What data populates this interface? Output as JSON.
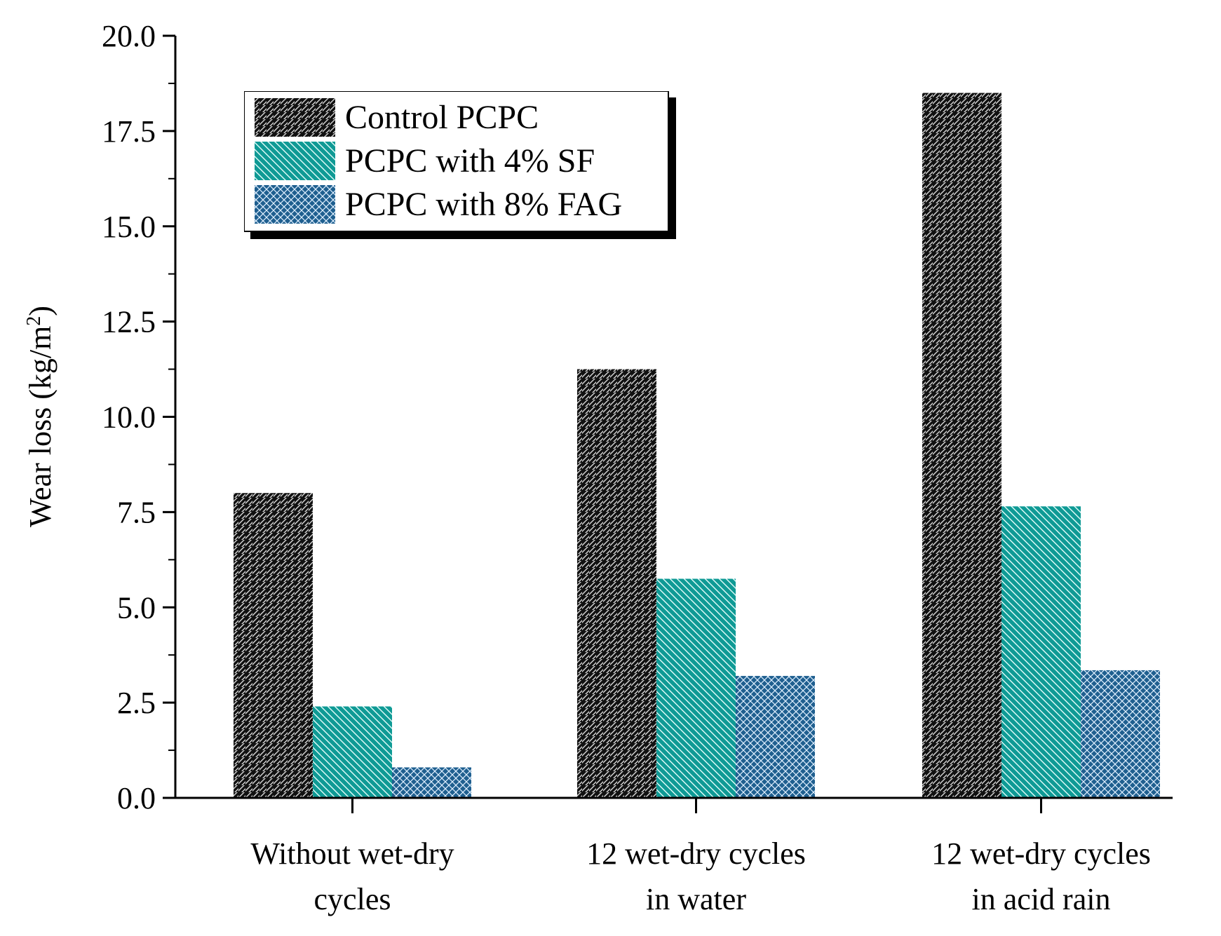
{
  "chart_data": {
    "type": "bar",
    "title": "",
    "xlabel": "",
    "ylabel": "Wear loss (kg/m",
    "ylabel_superscript": "2",
    "ylabel_close": ")",
    "ylim": [
      0,
      20
    ],
    "yticks": [
      0,
      2.5,
      5,
      7.5,
      10,
      12.5,
      15,
      17.5,
      20
    ],
    "ytick_labels": [
      "0.0",
      "2.5",
      "5.0",
      "7.5",
      "10.0",
      "12.5",
      "15.0",
      "17.5",
      "20.0"
    ],
    "categories": [
      [
        "Without wet-dry",
        "cycles"
      ],
      [
        "12 wet-dry cycles",
        "in water"
      ],
      [
        "12 wet-dry cycles",
        "in acid rain"
      ]
    ],
    "series": [
      {
        "name": "Control PCPC",
        "values": [
          8.0,
          11.25,
          18.5
        ],
        "color": "#111111"
      },
      {
        "name": "PCPC with 4% SF",
        "values": [
          2.4,
          5.75,
          7.65
        ],
        "color": "#0f9a95"
      },
      {
        "name": "PCPC with 8% FAG",
        "values": [
          0.8,
          3.2,
          3.35
        ],
        "color": "#1f5f8f"
      }
    ],
    "legend_position": "top-left"
  }
}
